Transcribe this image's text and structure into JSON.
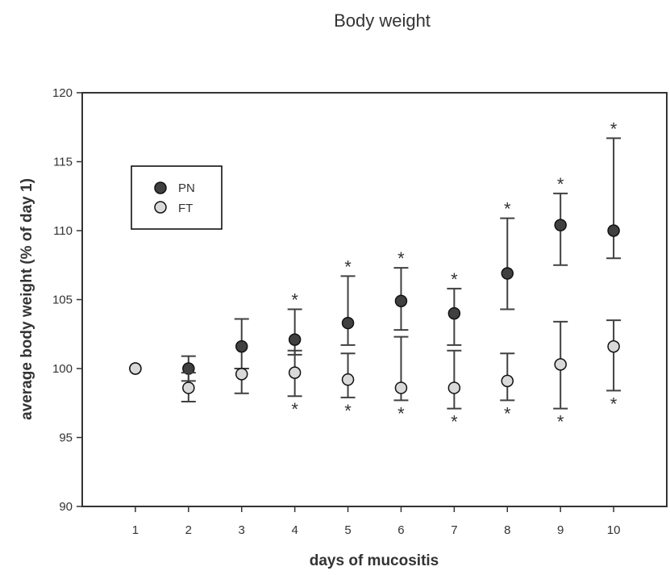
{
  "chart_data": {
    "type": "scatter",
    "title": "Body weight",
    "xlabel": "days of mucositis",
    "ylabel": "average body weight (% of day 1)",
    "x": [
      1,
      2,
      3,
      4,
      5,
      6,
      7,
      8,
      9,
      10
    ],
    "xlim": [
      0,
      11
    ],
    "ylim": [
      90,
      120
    ],
    "yticks": [
      90,
      95,
      100,
      105,
      110,
      115,
      120
    ],
    "grid": false,
    "legend_position": "top-left",
    "series": [
      {
        "name": "PN",
        "color": "#404040",
        "values": [
          100.0,
          100.0,
          101.6,
          102.1,
          103.3,
          104.9,
          104.0,
          106.9,
          110.4,
          110.0
        ],
        "err_low": [
          100.0,
          99.1,
          100.0,
          101.0,
          101.7,
          102.8,
          101.7,
          104.3,
          107.5,
          108.0
        ],
        "err_high": [
          100.0,
          100.9,
          103.6,
          104.3,
          106.7,
          107.3,
          105.8,
          110.9,
          112.7,
          116.7
        ],
        "significant": [
          false,
          false,
          false,
          true,
          true,
          true,
          true,
          true,
          true,
          true
        ]
      },
      {
        "name": "FT",
        "color": "#d9d9d9",
        "values": [
          100.0,
          98.6,
          99.6,
          99.7,
          99.2,
          98.6,
          98.6,
          99.1,
          100.3,
          101.6
        ],
        "err_low": [
          100.0,
          97.6,
          98.2,
          98.0,
          97.9,
          97.7,
          97.1,
          97.7,
          97.1,
          98.4
        ],
        "err_high": [
          100.0,
          99.7,
          100.0,
          101.3,
          101.1,
          102.3,
          101.3,
          101.1,
          103.4,
          103.5
        ],
        "significant": [
          false,
          false,
          false,
          true,
          true,
          true,
          true,
          true,
          true,
          true
        ]
      }
    ],
    "significance_marker": "*"
  }
}
